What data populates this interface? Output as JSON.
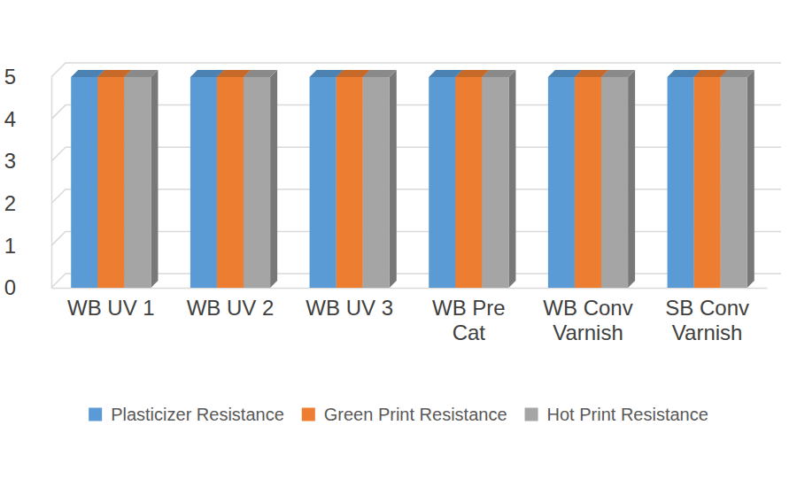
{
  "chart_data": {
    "type": "bar",
    "categories": [
      "WB UV 1",
      "WB UV 2",
      "WB UV 3",
      "WB Pre Cat",
      "WB Conv Varnish",
      "SB Conv Varnish"
    ],
    "series": [
      {
        "name": "Plasticizer Resistance",
        "color": "#5b9bd5",
        "values": [
          5,
          5,
          5,
          5,
          5,
          5
        ]
      },
      {
        "name": "Green Print Resistance",
        "color": "#ed7d31",
        "values": [
          5,
          5,
          5,
          5,
          5,
          5
        ]
      },
      {
        "name": "Hot Print Resistance",
        "color": "#a5a5a5",
        "values": [
          5,
          5,
          5,
          5,
          5,
          5
        ]
      }
    ],
    "ylim": [
      0,
      5
    ],
    "yticks": [
      0,
      1,
      2,
      3,
      4,
      5
    ],
    "grid": true,
    "legend": "bottom"
  }
}
